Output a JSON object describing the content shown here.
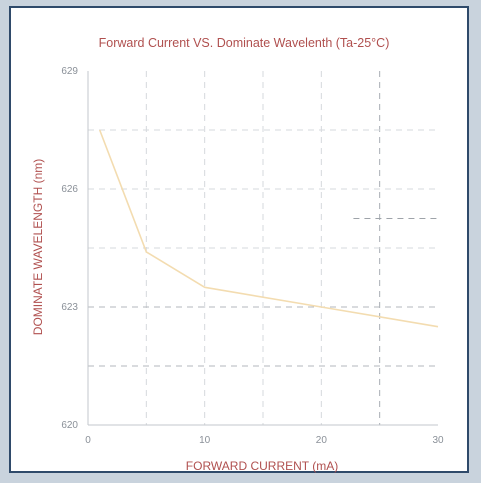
{
  "chart_data": {
    "type": "line",
    "title": "Forward Current VS. Dominate Wavelenth (Ta-25°C)",
    "xlabel": "FORWARD CURRENT (mA)",
    "ylabel": "DOMINATE WAVELENGTH (nm)",
    "xlim": [
      0,
      30
    ],
    "ylim": [
      620,
      629
    ],
    "x_ticks": [
      "0",
      "10",
      "20",
      "30"
    ],
    "y_ticks": [
      "620",
      "623",
      "626",
      "629"
    ],
    "grid": true,
    "series": [
      {
        "color": "#f3dcb0",
        "x": [
          1,
          5,
          10,
          20,
          30
        ],
        "y": [
          627.5,
          624.4,
          623.5,
          623.0,
          622.5
        ]
      }
    ]
  }
}
